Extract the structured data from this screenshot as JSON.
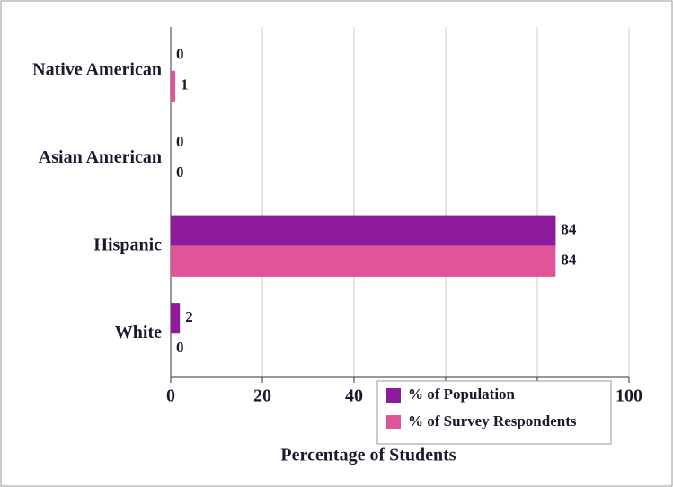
{
  "chart_data": {
    "type": "bar",
    "orientation": "horizontal",
    "categories": [
      "Native American",
      "Asian American",
      "Hispanic",
      "White"
    ],
    "series": [
      {
        "name": "% of Population",
        "color": "#8e1a9c",
        "values": [
          0,
          0,
          84,
          2
        ]
      },
      {
        "name": "% of Survey Respondents",
        "color": "#e0559a",
        "values": [
          1,
          0,
          84,
          0
        ]
      }
    ],
    "xlabel": "Percentage of Students",
    "xlim": [
      0,
      100
    ],
    "xticks": [
      0,
      20,
      40,
      60,
      80,
      100
    ],
    "grid": true
  }
}
